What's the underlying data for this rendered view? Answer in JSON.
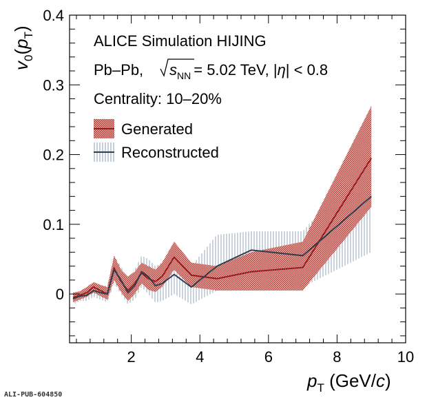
{
  "chart_data": {
    "type": "line",
    "annotations": {
      "line1": "ALICE Simulation HIJING",
      "line2_prefix": "Pb–Pb,",
      "line2_sqrt_s": "s",
      "line2_sqrt_sub": "NN",
      "line2_energy": "= 5.02 TeV, |",
      "line2_eta": "η",
      "line2_cut": "| < 0.8",
      "line3": "Centrality: 10–20%"
    },
    "xlabel": {
      "main": "p",
      "sub": "T",
      "units": " (GeV/",
      "units_italic": "c",
      "close": ")"
    },
    "ylabel": {
      "main": "v",
      "sub0": "0",
      "paren_open": "(",
      "p": "p",
      "subT": "T",
      "paren_close": ")"
    },
    "xlim": [
      0.2,
      10
    ],
    "ylim": [
      -0.07,
      0.4
    ],
    "xticks": [
      2,
      4,
      6,
      8,
      10
    ],
    "yticks": [
      0,
      0.1,
      0.2,
      0.3,
      0.4
    ],
    "ytick_labels": [
      "0",
      "0.1",
      "0.2",
      "0.3",
      "0.4"
    ],
    "legend": {
      "placement": "top-left"
    },
    "series": [
      {
        "name": "Generated",
        "color": "#9b1b1b",
        "band_color": "#c0392b",
        "x": [
          0.3,
          0.5,
          0.7,
          0.9,
          1.1,
          1.3,
          1.5,
          1.7,
          1.9,
          2.1,
          2.3,
          2.5,
          2.7,
          2.9,
          3.25,
          3.75,
          4.5,
          5.5,
          7.0,
          9.0
        ],
        "y": [
          -0.005,
          -0.002,
          0.002,
          0.01,
          0.005,
          0.0,
          0.037,
          0.018,
          0.005,
          0.015,
          0.03,
          0.022,
          0.018,
          0.025,
          0.053,
          0.027,
          0.022,
          0.032,
          0.038,
          0.195
        ],
        "y_low": [
          -0.012,
          -0.008,
          -0.004,
          0.002,
          -0.003,
          -0.008,
          0.02,
          0.003,
          -0.01,
          0.0,
          0.015,
          0.006,
          0.003,
          0.01,
          0.035,
          0.01,
          0.005,
          0.005,
          0.005,
          0.125
        ],
        "y_high": [
          0.002,
          0.004,
          0.01,
          0.017,
          0.013,
          0.01,
          0.055,
          0.035,
          0.025,
          0.032,
          0.045,
          0.04,
          0.035,
          0.045,
          0.075,
          0.045,
          0.04,
          0.06,
          0.075,
          0.27
        ]
      },
      {
        "name": "Reconstructed",
        "color": "#2c3e50",
        "band_color": "#6b7f95",
        "x": [
          0.3,
          0.5,
          0.7,
          0.9,
          1.1,
          1.3,
          1.5,
          1.7,
          1.9,
          2.1,
          2.3,
          2.5,
          2.7,
          2.9,
          3.25,
          3.75,
          4.5,
          5.5,
          7.0,
          9.0
        ],
        "y": [
          -0.007,
          -0.003,
          -0.002,
          0.005,
          0.002,
          0.0,
          0.035,
          0.02,
          0.002,
          0.012,
          0.032,
          0.025,
          0.012,
          0.015,
          0.028,
          0.01,
          0.04,
          0.063,
          0.055,
          0.14
        ],
        "y_low": [
          -0.015,
          -0.01,
          -0.01,
          -0.004,
          -0.008,
          -0.012,
          0.015,
          0.0,
          -0.015,
          -0.008,
          0.01,
          0.0,
          -0.012,
          -0.01,
          0.0,
          -0.015,
          0.005,
          0.03,
          0.01,
          0.06
        ],
        "y_high": [
          0.001,
          0.004,
          0.006,
          0.014,
          0.012,
          0.012,
          0.055,
          0.04,
          0.02,
          0.035,
          0.055,
          0.05,
          0.04,
          0.045,
          0.06,
          0.04,
          0.085,
          0.09,
          0.09,
          0.2
        ]
      }
    ]
  },
  "footer": {
    "pub_id": "ALI-PUB-604850"
  }
}
